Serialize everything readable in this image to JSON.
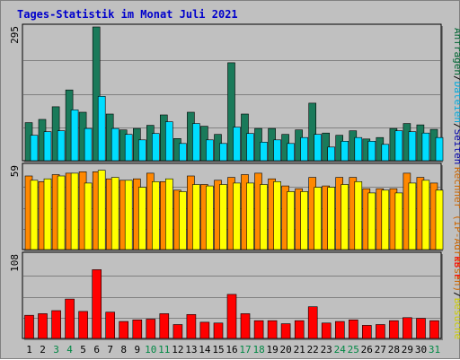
{
  "chart_data": {
    "type": "bar",
    "title": "Tages-Statistik im Monat Juli 2021",
    "categories": [
      "1",
      "2",
      "3",
      "4",
      "5",
      "6",
      "7",
      "8",
      "9",
      "10",
      "11",
      "12",
      "13",
      "14",
      "15",
      "16",
      "17",
      "18",
      "19",
      "20",
      "21",
      "22",
      "23",
      "24",
      "25",
      "26",
      "27",
      "28",
      "29",
      "30",
      "31"
    ],
    "weekend_days": [
      "3",
      "4",
      "10",
      "11",
      "17",
      "18",
      "24",
      "25",
      "31"
    ],
    "panels": [
      {
        "ymax_label": "295",
        "ylim": [
          0,
          295
        ],
        "legend": [
          {
            "text": "Anfragen",
            "color": "#006633"
          },
          {
            "text": "/",
            "color": "#000000"
          },
          {
            "text": "Dateien",
            "color": "#00aadd"
          },
          {
            "text": "/",
            "color": "#000000"
          },
          {
            "text": "Seiten",
            "color": "#0000aa"
          }
        ],
        "series": [
          {
            "name": "Anfragen",
            "color": "#1a7a5a",
            "values": [
              84,
              91,
              119,
              156,
              107,
              295,
              103,
              68,
              71,
              78,
              101,
              49,
              107,
              76,
              58,
              216,
              103,
              71,
              71,
              58,
              68,
              127,
              61,
              56,
              66,
              48,
              51,
              71,
              82,
              79,
              69
            ]
          },
          {
            "name": "Dateien",
            "color": "#00ddff",
            "values": [
              56,
              64,
              66,
              112,
              71,
              142,
              71,
              58,
              46,
              60,
              86,
              38,
              82,
              46,
              38,
              74,
              60,
              41,
              46,
              38,
              51,
              58,
              30,
              43,
              51,
              43,
              36,
              66,
              64,
              61,
              51
            ]
          }
        ]
      },
      {
        "ymax_label": "59",
        "ylim": [
          0,
          59
        ],
        "legend": [
          {
            "text": "Rechner (IP-Adressen)",
            "color": "#cc6600"
          },
          {
            "text": "/",
            "color": "#000000"
          },
          {
            "text": "Besuche",
            "color": "#cccc00"
          }
        ],
        "series": [
          {
            "name": "Rechner",
            "color": "#ff8800",
            "values": [
              52,
              48,
              53,
              54,
              55,
              55,
              50,
              49,
              50,
              54,
              48,
              42,
              52,
              46,
              49,
              51,
              53,
              54,
              50,
              45,
              43,
              51,
              45,
              51,
              51,
              43,
              43,
              43,
              54,
              51,
              47
            ]
          },
          {
            "name": "Besuche",
            "color": "#ffff00",
            "values": [
              49,
              50,
              52,
              54,
              47,
              56,
              51,
              49,
              44,
              48,
              50,
              41,
              46,
              45,
              46,
              47,
              47,
              46,
              48,
              41,
              41,
              44,
              44,
              46,
              48,
              40,
              42,
              40,
              47,
              49,
              42
            ]
          }
        ]
      },
      {
        "ymax_label": "108",
        "ylim": [
          0,
          108
        ],
        "legend": [
          {
            "text": "kB F",
            "color": "#ff0000"
          }
        ],
        "series": [
          {
            "name": "kB F",
            "color": "#ff0000",
            "values": [
              30,
              32,
              36,
              51,
              35,
              89,
              34,
              22,
              24,
              25,
              32,
              18,
              31,
              21,
              20,
              57,
              32,
              23,
              23,
              19,
              23,
              41,
              20,
              22,
              24,
              17,
              18,
              23,
              27,
              26,
              23
            ]
          }
        ]
      }
    ]
  }
}
